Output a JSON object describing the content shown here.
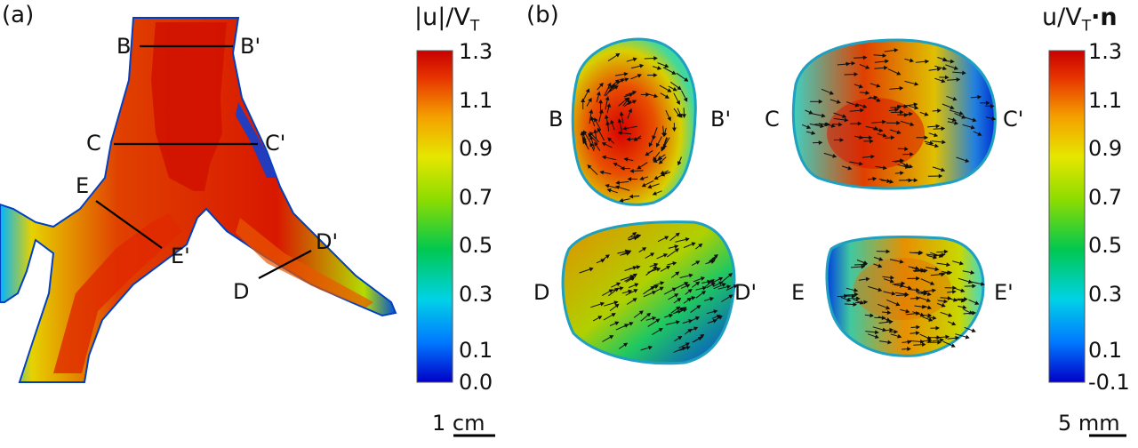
{
  "panels": [
    {
      "letter": "(a)",
      "sections": [
        "B",
        "B'",
        "C",
        "C'",
        "E",
        "E'",
        "D",
        "D'"
      ],
      "colorbar": {
        "title": "|u|/V",
        "title_sub": "T",
        "ticks": [
          "1.3",
          "1.1",
          "0.9",
          "0.7",
          "0.5",
          "0.3",
          "0.1",
          "0.0"
        ],
        "min": 0.0,
        "max": 1.3
      },
      "scale_bar": {
        "number": "1",
        "unit": "cm"
      }
    },
    {
      "letter": "(b)",
      "sections": [
        "B",
        "B'",
        "C",
        "C'",
        "D",
        "D'",
        "E",
        "E'"
      ],
      "colorbar": {
        "title": "u/V",
        "title_sub": "T",
        "title_suffix": "·n",
        "ticks": [
          "1.3",
          "1.1",
          "0.9",
          "0.7",
          "0.5",
          "0.3",
          "0.1",
          "-0.1"
        ],
        "min": -0.1,
        "max": 1.3
      },
      "scale_bar": {
        "number": "5",
        "unit": "mm"
      }
    }
  ],
  "colors": {
    "colormap": [
      "#0000c8",
      "#0078ff",
      "#00d2e6",
      "#00c850",
      "#8cdc00",
      "#e6e600",
      "#f5a000",
      "#e63200",
      "#c80000"
    ],
    "line": "#000000",
    "arrow": "#111111"
  }
}
